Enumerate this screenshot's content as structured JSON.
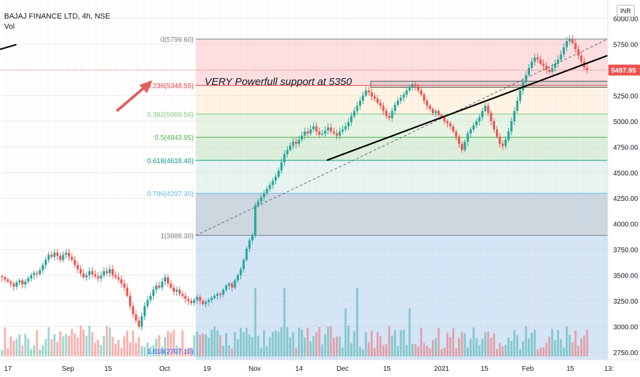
{
  "header": {
    "title": "BAJAJ FINANCE LTD, 4h, NSE",
    "volume_label": "Vol",
    "currency_button": "INR"
  },
  "annotation": "VERY Powerfull support at 5350",
  "colors": {
    "up": "#26a69a",
    "down": "#ef5350",
    "price_tag": "#ef5350",
    "arrow": "#e06060",
    "trendline": "#000000"
  },
  "chart_data": {
    "type": "candlestick",
    "title": "BAJAJ FINANCE LTD, 4h, NSE",
    "ylim": [
      2700,
      6100
    ],
    "y_ticks": [
      2750,
      3000,
      3250,
      3500,
      3750,
      4000,
      4250,
      4500,
      4750,
      5000,
      5250,
      5500,
      5750,
      6000
    ],
    "y_tick_labels": [
      "2750.00",
      "3000.00",
      "3250.00",
      "3500.00",
      "3750.00",
      "4000.00",
      "4250.00",
      "4500.00",
      "4750.00",
      "5000.00",
      "5250.00",
      "5500.00",
      "5750.00",
      "6000.00"
    ],
    "x_tick_labels": [
      "17",
      "Sep",
      "15",
      "Oct",
      "19",
      "Nov",
      "14",
      "Dec",
      "15",
      "2021",
      "15",
      "Feb",
      "15",
      "13:"
    ],
    "last_price": 5497.95,
    "last_price_label": "5497.95",
    "fibonacci": [
      {
        "ratio": 0,
        "price": 5799.6,
        "label": "0(5799.60)",
        "color": "#787b86"
      },
      {
        "ratio": 0.236,
        "price": 5348.55,
        "label": "0.236(5348.55)",
        "color": "#f23645"
      },
      {
        "ratio": 0.382,
        "price": 5069.5,
        "label": "0.382(5069.50)",
        "color": "#81c784"
      },
      {
        "ratio": 0.5,
        "price": 4843.95,
        "label": "0.5(4843.95)",
        "color": "#4caf50"
      },
      {
        "ratio": 0.618,
        "price": 4618.4,
        "label": "0.618(4618.40)",
        "color": "#089981"
      },
      {
        "ratio": 0.786,
        "price": 4297.3,
        "label": "0.786(4297.30)",
        "color": "#64b5f6"
      },
      {
        "ratio": 1,
        "price": 3888.3,
        "label": "1(3888.30)",
        "color": "#787b86"
      },
      {
        "ratio": 1.618,
        "price": 2707.1,
        "label": "1.618(2707.10)",
        "color": "#2962ff"
      }
    ],
    "closes": [
      3480,
      3460,
      3440,
      3420,
      3390,
      3430,
      3450,
      3410,
      3440,
      3470,
      3500,
      3520,
      3510,
      3550,
      3600,
      3650,
      3700,
      3680,
      3720,
      3690,
      3650,
      3700,
      3720,
      3680,
      3650,
      3600,
      3560,
      3520,
      3480,
      3500,
      3540,
      3510,
      3490,
      3470,
      3500,
      3540,
      3520,
      3560,
      3500,
      3480,
      3460,
      3420,
      3380,
      3300,
      3200,
      3120,
      3060,
      3000,
      3100,
      3200,
      3260,
      3300,
      3360,
      3400,
      3380,
      3440,
      3480,
      3420,
      3380,
      3340,
      3360,
      3320,
      3300,
      3270,
      3250,
      3230,
      3260,
      3290,
      3250,
      3220,
      3240,
      3260,
      3280,
      3300,
      3320,
      3310,
      3360,
      3400,
      3420,
      3380,
      3450,
      3500,
      3560,
      3650,
      3760,
      3840,
      3890,
      4180,
      4220,
      4260,
      4300,
      4340,
      4380,
      4420,
      4460,
      4520,
      4600,
      4680,
      4720,
      4760,
      4800,
      4780,
      4820,
      4860,
      4900,
      4880,
      4920,
      4950,
      4900,
      4870,
      4880,
      4910,
      4940,
      4900,
      4880,
      4860,
      4900,
      4920,
      4950,
      4990,
      5050,
      5100,
      5150,
      5200,
      5250,
      5300,
      5280,
      5240,
      5220,
      5180,
      5150,
      5100,
      5050,
      5030,
      5100,
      5160,
      5200,
      5230,
      5260,
      5300,
      5330,
      5360,
      5340,
      5300,
      5260,
      5200,
      5150,
      5120,
      5080,
      5100,
      5060,
      5040,
      5000,
      4980,
      4950,
      4900,
      4850,
      4780,
      4720,
      4800,
      4880,
      4920,
      4960,
      5000,
      5040,
      5100,
      5150,
      5080,
      5000,
      4920,
      4850,
      4780,
      4760,
      4820,
      4900,
      5000,
      5100,
      5200,
      5300,
      5380,
      5450,
      5520,
      5580,
      5620,
      5600,
      5560,
      5540,
      5500,
      5480,
      5520,
      5560,
      5600,
      5650,
      5720,
      5780,
      5800,
      5760,
      5700,
      5640,
      5580,
      5520,
      5497.95
    ],
    "trendlines": [
      {
        "name": "support-line",
        "from_price": 4620,
        "to_price": 5560
      },
      {
        "name": "dashed-channel",
        "from_price": 3888,
        "to_price": 5799
      }
    ],
    "support_zone": {
      "low": 5330,
      "high": 5390
    }
  }
}
